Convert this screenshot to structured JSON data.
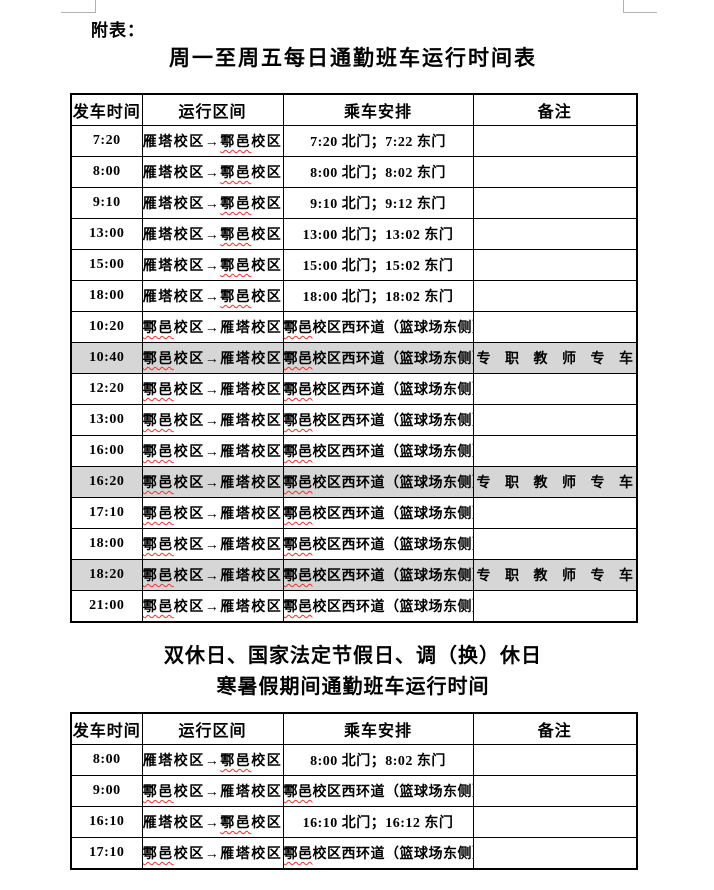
{
  "page": {
    "appendix_label": "附表：",
    "table1_title": "周一至周五每日通勤班车运行时间表",
    "table2_title_line1": "双休日、国家法定节假日、调（换）休日",
    "table2_title_line2": "寒暑假期间通勤班车运行时间"
  },
  "columns": {
    "time": "发车时间",
    "route": "运行区间",
    "arrangement": "乘车安排",
    "remark": "备注"
  },
  "spellcheck": {
    "words": [
      "鄠邑"
    ],
    "underline_color": "#f03030"
  },
  "colors": {
    "highlight_row": "#d6d6d6",
    "table_border": "#000000",
    "crop_mark": "#b0b0b0",
    "page_background": "#ffffff"
  },
  "table1": {
    "rows": [
      {
        "time": "7:20",
        "route": "雁塔校区→鄠邑校区",
        "arrangement": "7:20 北门；7:22 东门",
        "remark": "",
        "highlight": false
      },
      {
        "time": "8:00",
        "route": "雁塔校区→鄠邑校区",
        "arrangement": "8:00 北门；8:02 东门",
        "remark": "",
        "highlight": false
      },
      {
        "time": "9:10",
        "route": "雁塔校区→鄠邑校区",
        "arrangement": "9:10 北门；9:12 东门",
        "remark": "",
        "highlight": false
      },
      {
        "time": "13:00",
        "route": "雁塔校区→鄠邑校区",
        "arrangement": "13:00 北门；13:02 东门",
        "remark": "",
        "highlight": false
      },
      {
        "time": "15:00",
        "route": "雁塔校区→鄠邑校区",
        "arrangement": "15:00 北门；15:02 东门",
        "remark": "",
        "highlight": false
      },
      {
        "time": "18:00",
        "route": "雁塔校区→鄠邑校区",
        "arrangement": "18:00 北门；18:02 东门",
        "remark": "",
        "highlight": false
      },
      {
        "time": "10:20",
        "route": "鄠邑校区→雁塔校区",
        "arrangement": "鄠邑校区西环道（篮球场东侧）",
        "remark": "",
        "highlight": false
      },
      {
        "time": "10:40",
        "route": "鄠邑校区→雁塔校区",
        "arrangement": "鄠邑校区西环道（篮球场东侧）",
        "remark": "专职教师专车",
        "highlight": true
      },
      {
        "time": "12:20",
        "route": "鄠邑校区→雁塔校区",
        "arrangement": "鄠邑校区西环道（篮球场东侧）",
        "remark": "",
        "highlight": false
      },
      {
        "time": "13:00",
        "route": "鄠邑校区→雁塔校区",
        "arrangement": "鄠邑校区西环道（篮球场东侧）",
        "remark": "",
        "highlight": false
      },
      {
        "time": "16:00",
        "route": "鄠邑校区→雁塔校区",
        "arrangement": "鄠邑校区西环道（篮球场东侧）",
        "remark": "",
        "highlight": false
      },
      {
        "time": "16:20",
        "route": "鄠邑校区→雁塔校区",
        "arrangement": "鄠邑校区西环道（篮球场东侧）",
        "remark": "专职教师专车",
        "highlight": true
      },
      {
        "time": "17:10",
        "route": "鄠邑校区→雁塔校区",
        "arrangement": "鄠邑校区西环道（篮球场东侧）",
        "remark": "",
        "highlight": false
      },
      {
        "time": "18:00",
        "route": "鄠邑校区→雁塔校区",
        "arrangement": "鄠邑校区西环道（篮球场东侧）",
        "remark": "",
        "highlight": false
      },
      {
        "time": "18:20",
        "route": "鄠邑校区→雁塔校区",
        "arrangement": "鄠邑校区西环道（篮球场东侧）",
        "remark": "专职教师专车",
        "highlight": true
      },
      {
        "time": "21:00",
        "route": "鄠邑校区→雁塔校区",
        "arrangement": "鄠邑校区西环道（篮球场东侧）",
        "remark": "",
        "highlight": false
      }
    ]
  },
  "table2": {
    "rows": [
      {
        "time": "8:00",
        "route": "雁塔校区→鄠邑校区",
        "arrangement": "8:00 北门；8:02 东门",
        "remark": "",
        "highlight": false
      },
      {
        "time": "9:00",
        "route": "鄠邑校区→雁塔校区",
        "arrangement": "鄠邑校区西环道（篮球场东侧）",
        "remark": "",
        "highlight": false
      },
      {
        "time": "16:10",
        "route": "雁塔校区→鄠邑校区",
        "arrangement": "16:10 北门；16:12 东门",
        "remark": "",
        "highlight": false
      },
      {
        "time": "17:10",
        "route": "鄠邑校区→雁塔校区",
        "arrangement": "鄠邑校区西环道（篮球场东侧）",
        "remark": "",
        "highlight": false
      }
    ]
  }
}
